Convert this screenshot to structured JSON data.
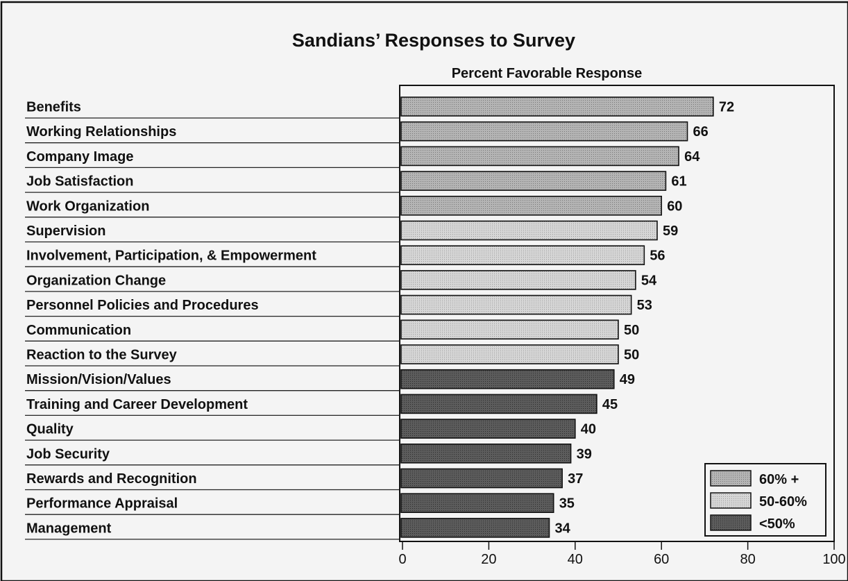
{
  "chart_data": {
    "type": "bar",
    "orientation": "horizontal",
    "title": "Sandians’ Responses to Survey",
    "xlabel": "Percent Favorable Response",
    "ylabel": "",
    "xlim": [
      0,
      100
    ],
    "x_ticks": [
      0,
      20,
      40,
      60,
      80,
      100
    ],
    "categories": [
      "Benefits",
      "Working Relationships",
      "Company Image",
      "Job Satisfaction",
      "Work Organization",
      "Supervision",
      "Involvement, Participation, & Empowerment",
      "Organization Change",
      "Personnel Policies and Procedures",
      "Communication",
      "Reaction to the Survey",
      "Mission/Vision/Values",
      "Training and Career Development",
      "Quality",
      "Job Security",
      "Rewards and Recognition",
      "Performance Appraisal",
      "Management"
    ],
    "values": [
      72,
      66,
      64,
      61,
      60,
      59,
      56,
      54,
      53,
      50,
      50,
      49,
      45,
      40,
      39,
      37,
      35,
      34
    ],
    "data_labels": [
      "72",
      "66",
      "64",
      "61",
      "60",
      "59",
      "56",
      "54",
      "53",
      "50",
      "50",
      "49",
      "45",
      "40",
      "39",
      "37",
      "35",
      "34"
    ],
    "legend": {
      "placement": "bottom-right",
      "entries": [
        {
          "label": "60% +",
          "color": "#b4b4b4"
        },
        {
          "label": "50-60%",
          "color": "#d4d4d4"
        },
        {
          "label": "<50%",
          "color": "#5c5c5c"
        }
      ]
    },
    "grid": false,
    "colors": {
      "high": "#b4b4b4",
      "mid": "#d4d4d4",
      "low": "#5c5c5c",
      "frame": "#111111",
      "background": "#f4f4f4"
    }
  }
}
